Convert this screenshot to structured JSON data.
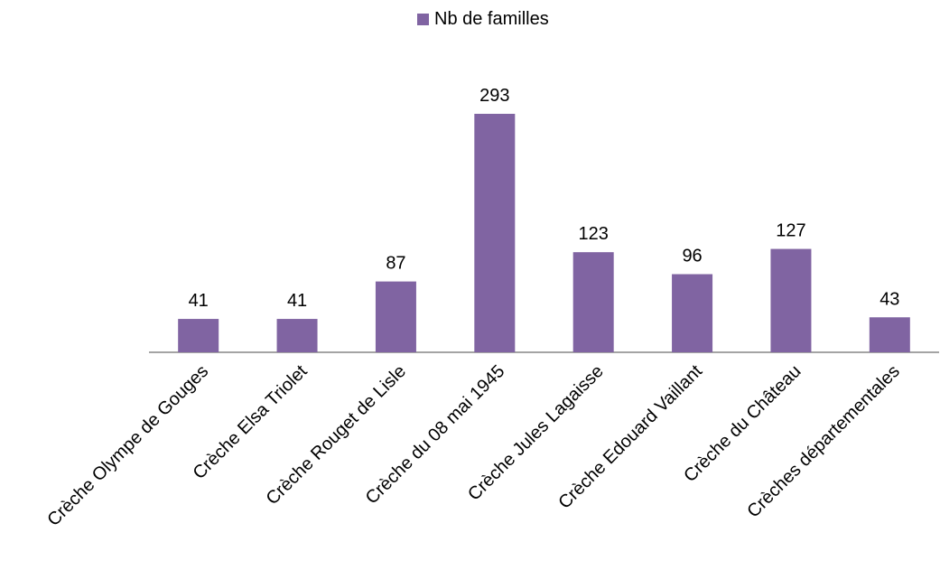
{
  "chart_data": {
    "type": "bar",
    "categories": [
      "Crèche Olympe de Gouges",
      "Crèche Elsa Triolet",
      "Crèche Rouget de Lisle",
      "Crèche du 08 mai 1945",
      "Crèche Jules Lagaisse",
      "Crèche Edouard Vaillant",
      "Crèche du Château",
      "Crèches départementales"
    ],
    "series": [
      {
        "name": "Nb de familles",
        "values": [
          41,
          41,
          87,
          293,
          123,
          96,
          127,
          43
        ],
        "color": "#8064A2"
      }
    ],
    "data_labels": [
      "41",
      "41",
      "87",
      "293",
      "123",
      "96",
      "127",
      "43"
    ],
    "legend_position": "top",
    "grid": false,
    "ylim": [
      0,
      293
    ]
  }
}
